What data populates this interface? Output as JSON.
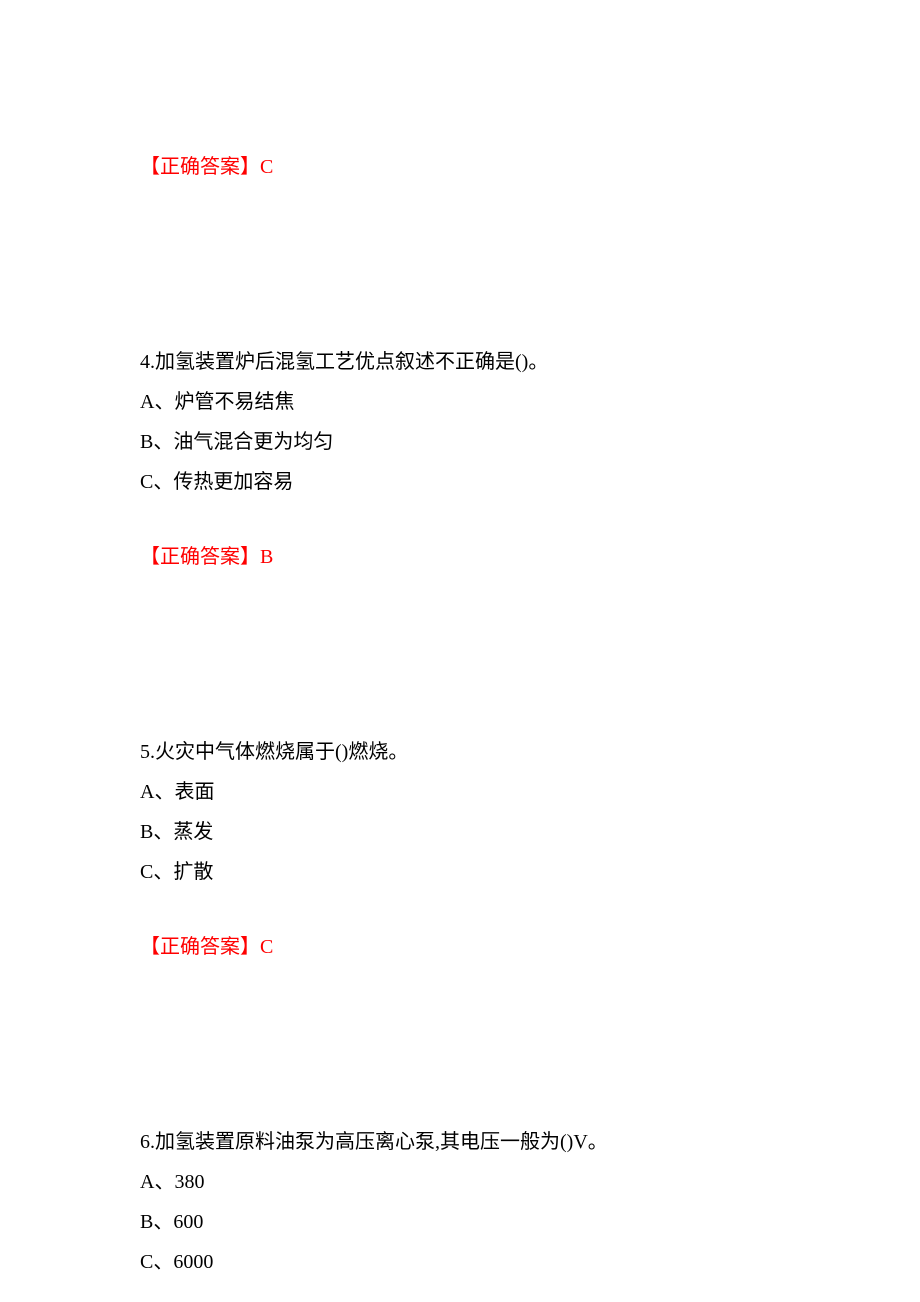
{
  "answer_label": "【正确答案】",
  "text_color": "#000000",
  "answer_color": "#ff0000",
  "background_color": "#ffffff",
  "font_family": "SimSun",
  "body_fontsize": 20,
  "q3": {
    "answer": "C"
  },
  "q4": {
    "text": "4.加氢装置炉后混氢工艺优点叙述不正确是()。",
    "options": {
      "a": "A、炉管不易结焦",
      "b": "B、油气混合更为均匀",
      "c": "C、传热更加容易"
    },
    "answer": "B"
  },
  "q5": {
    "text": "5.火灾中气体燃烧属于()燃烧。",
    "options": {
      "a": "A、表面",
      "b": "B、蒸发",
      "c": "C、扩散"
    },
    "answer": "C"
  },
  "q6": {
    "text": "6.加氢装置原料油泵为高压离心泵,其电压一般为()V。",
    "options": {
      "a": "A、380",
      "b": "B、600",
      "c": "C、6000"
    }
  }
}
